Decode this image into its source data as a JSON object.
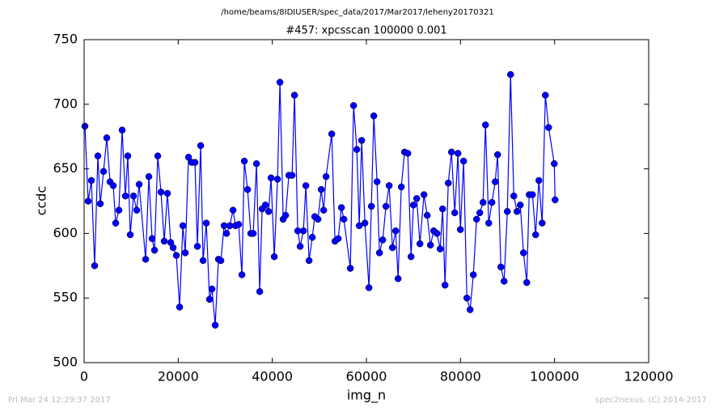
{
  "chart_data": {
    "type": "line",
    "suptitle": "/home/beams/8IDIUSER/spec_data/2017/Mar2017/leheny20170321",
    "title": "#457: xpcsscan 100000 0.001",
    "xlabel": "img_n",
    "ylabel": "ccdc",
    "timestamp": "Fri Mar 24 12:29:37 2017",
    "credit": "spec2nexus, (C) 2014-2017",
    "xlim": [
      0,
      120000
    ],
    "xticks": [
      0,
      20000,
      40000,
      60000,
      80000,
      100000,
      120000
    ],
    "ylim": [
      500,
      750
    ],
    "yticks": [
      500,
      550,
      600,
      650,
      700,
      750
    ],
    "x": [
      172,
      860,
      1548,
      2236,
      2924,
      3440,
      4128,
      4816,
      5504,
      6192,
      6708,
      7396,
      8084,
      8772,
      9288,
      9804,
      10492,
      11180,
      11696,
      13072,
      13760,
      14448,
      14964,
      15652,
      16340,
      17028,
      17716,
      18404,
      18920,
      19608,
      20296,
      20984,
      21500,
      22188,
      22876,
      23564,
      24080,
      24768,
      25284,
      25972,
      26660,
      27176,
      27864,
      28552,
      29068,
      29756,
      30272,
      30960,
      31648,
      32164,
      32852,
      33540,
      34056,
      34744,
      35432,
      35948,
      36636,
      37324,
      37840,
      38528,
      39216,
      39732,
      40420,
      41108,
      41624,
      42312,
      42828,
      43516,
      44204,
      44720,
      45408,
      45924,
      46612,
      47128,
      47816,
      48504,
      49020,
      49708,
      50396,
      50912,
      51428,
      52632,
      53320,
      54008,
      54696,
      55212,
      56588,
      57276,
      57964,
      58480,
      58996,
      59684,
      60544,
      61060,
      61576,
      62264,
      62780,
      63468,
      64156,
      64844,
      65532,
      66220,
      66736,
      67424,
      68112,
      68800,
      69488,
      70004,
      70692,
      71380,
      72240,
      72928,
      73616,
      74304,
      74992,
      75680,
      76196,
      76712,
      77400,
      78088,
      78776,
      79464,
      79980,
      80668,
      81356,
      82044,
      82732,
      83420,
      84108,
      84796,
      85312,
      86000,
      86688,
      87376,
      87892,
      88580,
      89268,
      89956,
      90644,
      91332,
      92020,
      92708,
      93396,
      94084,
      94600,
      95288,
      95976,
      96664,
      97352,
      98040,
      98728,
      99932,
      100104
    ],
    "series": [
      {
        "color": "#0000ff",
        "values": [
          683,
          625,
          641,
          575,
          660,
          623,
          648,
          674,
          640,
          637,
          608,
          618,
          680,
          629,
          660,
          599,
          629,
          618,
          638,
          580,
          644,
          596,
          587,
          660,
          632,
          594,
          631,
          593,
          589,
          583,
          543,
          606,
          585,
          659,
          655,
          655,
          590,
          668,
          579,
          608,
          549,
          557,
          529,
          580,
          579,
          606,
          600,
          606,
          618,
          606,
          607,
          568,
          656,
          634,
          600,
          600,
          654,
          555,
          619,
          622,
          617,
          643,
          582,
          642,
          717,
          611,
          614,
          645,
          645,
          707,
          602,
          590,
          602,
          637,
          579,
          597,
          613,
          611,
          634,
          618,
          644,
          677,
          594,
          596,
          620,
          611,
          573,
          699,
          665,
          606,
          672,
          608,
          558,
          621,
          691,
          640,
          585,
          595,
          621,
          637,
          589,
          602,
          565,
          636,
          663,
          662,
          582,
          622,
          627,
          592,
          630,
          614,
          591,
          602,
          600,
          588,
          619,
          560,
          639,
          663,
          616,
          662,
          603,
          656,
          550,
          541,
          568,
          611,
          616,
          624,
          684,
          608,
          624,
          640,
          661,
          574,
          563,
          617,
          723,
          629,
          617,
          622,
          585,
          562,
          630,
          630,
          599,
          641,
          608,
          707,
          682,
          654,
          626
        ]
      }
    ]
  }
}
